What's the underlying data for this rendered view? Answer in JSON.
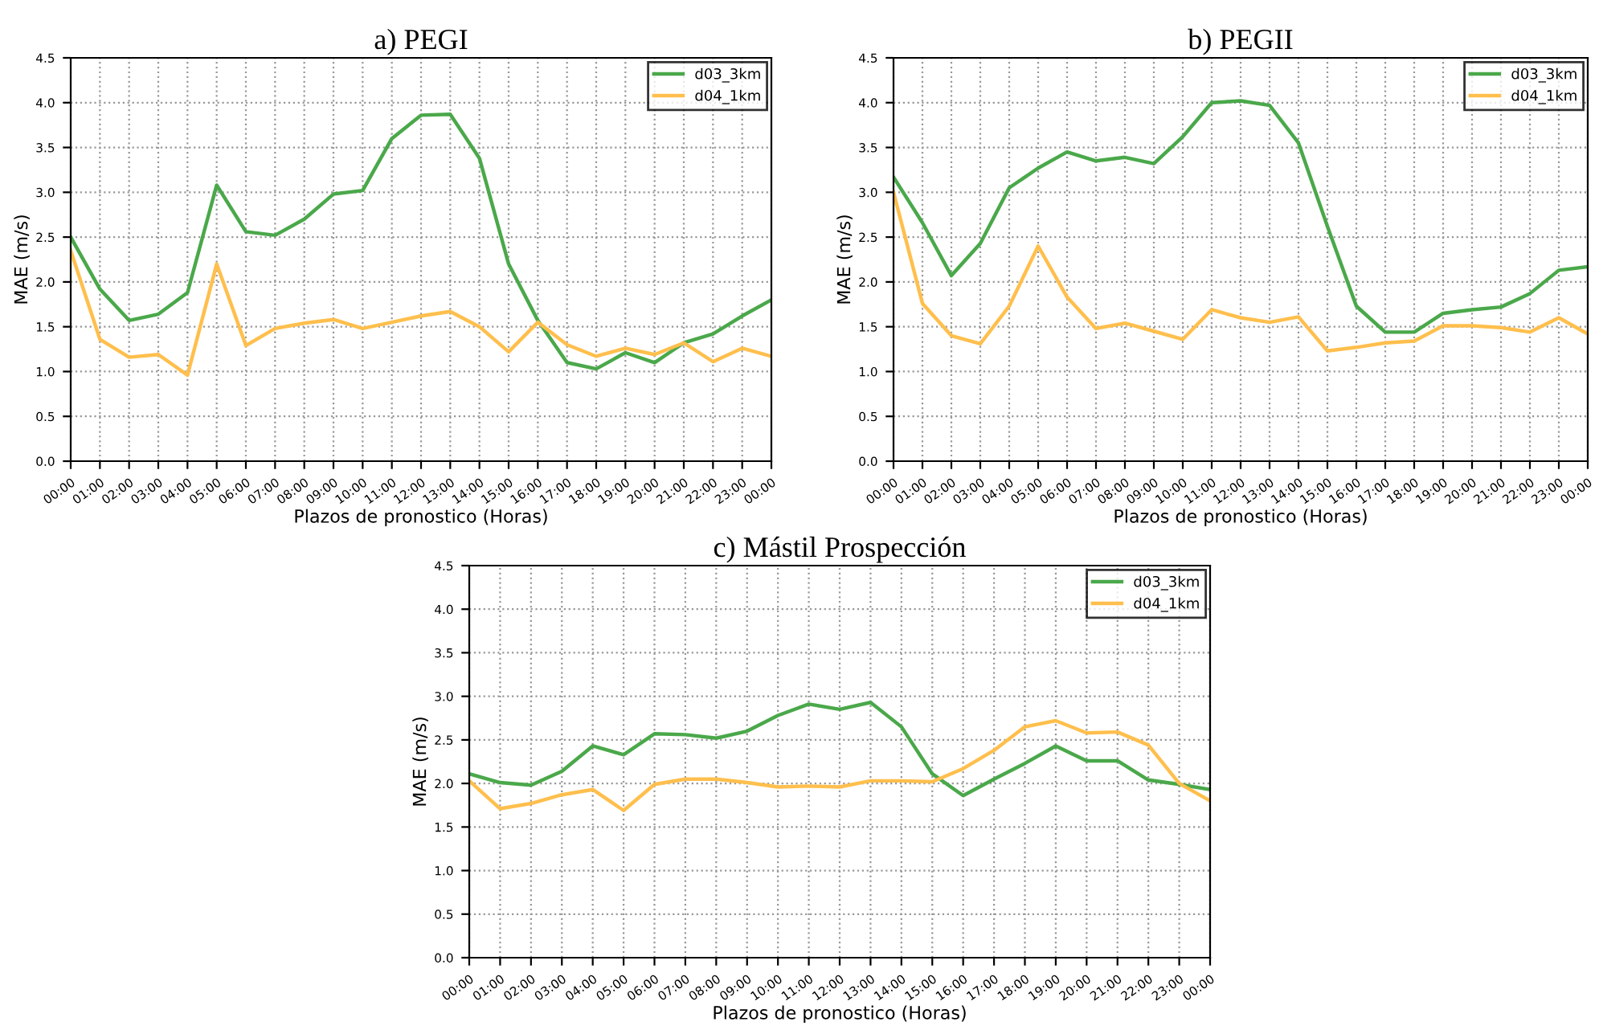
{
  "chart_data": [
    {
      "type": "line",
      "title": "a) PEGI",
      "xlabel": "Plazos de pronostico (Horas)",
      "ylabel": "MAE (m/s)",
      "categories": [
        "00:00",
        "01:00",
        "02:00",
        "03:00",
        "04:00",
        "05:00",
        "06:00",
        "07:00",
        "08:00",
        "09:00",
        "10:00",
        "11:00",
        "12:00",
        "13:00",
        "14:00",
        "15:00",
        "16:00",
        "17:00",
        "18:00",
        "19:00",
        "20:00",
        "21:00",
        "22:00",
        "23:00",
        "00:00"
      ],
      "series": [
        {
          "name": "d03_3km",
          "color": "#4aa84a",
          "values": [
            2.5,
            1.92,
            1.57,
            1.64,
            1.88,
            3.08,
            2.56,
            2.52,
            2.7,
            2.98,
            3.02,
            3.6,
            3.86,
            3.87,
            3.38,
            2.2,
            1.57,
            1.1,
            1.03,
            1.21,
            1.1,
            1.32,
            1.42,
            1.62,
            1.8
          ]
        },
        {
          "name": "d04_1km",
          "color": "#ffbf4d",
          "values": [
            2.35,
            1.36,
            1.16,
            1.19,
            0.96,
            2.2,
            1.29,
            1.48,
            1.54,
            1.58,
            1.48,
            1.55,
            1.62,
            1.67,
            1.5,
            1.22,
            1.55,
            1.3,
            1.17,
            1.26,
            1.19,
            1.32,
            1.11,
            1.26,
            1.17
          ]
        }
      ],
      "ylim": [
        0,
        4.5
      ],
      "yticks": [
        {
          "value": 0,
          "label": "0.0"
        },
        {
          "value": 0.5,
          "label": "0.5"
        },
        {
          "value": 1,
          "label": "1.0"
        },
        {
          "value": 1.5,
          "label": "1.5"
        },
        {
          "value": 2,
          "label": "2.0"
        },
        {
          "value": 2.5,
          "label": "2.5"
        },
        {
          "value": 3,
          "label": "3.0"
        },
        {
          "value": 3.5,
          "label": "3.5"
        },
        {
          "value": 4,
          "label": "4.0"
        },
        {
          "value": 4.5,
          "label": "4.5"
        }
      ],
      "grid": true,
      "legend": "top right",
      "line_style": "solid"
    },
    {
      "type": "line",
      "title": "b) PEGII",
      "xlabel": "Plazos de pronostico (Horas)",
      "ylabel": "MAE (m/s)",
      "categories": [
        "00:00",
        "01:00",
        "02:00",
        "03:00",
        "04:00",
        "05:00",
        "06:00",
        "07:00",
        "08:00",
        "09:00",
        "10:00",
        "11:00",
        "12:00",
        "13:00",
        "14:00",
        "15:00",
        "16:00",
        "17:00",
        "18:00",
        "19:00",
        "20:00",
        "21:00",
        "22:00",
        "23:00",
        "00:00"
      ],
      "series": [
        {
          "name": "d03_3km",
          "color": "#4aa84a",
          "values": [
            3.17,
            2.66,
            2.07,
            2.43,
            3.05,
            3.27,
            3.45,
            3.35,
            3.39,
            3.32,
            3.62,
            4.0,
            4.02,
            3.97,
            3.55,
            2.62,
            1.73,
            1.44,
            1.44,
            1.65,
            1.69,
            1.72,
            1.87,
            2.13,
            2.17
          ]
        },
        {
          "name": "d04_1km",
          "color": "#ffbf4d",
          "values": [
            3.0,
            1.76,
            1.4,
            1.31,
            1.73,
            2.4,
            1.83,
            1.48,
            1.54,
            1.45,
            1.36,
            1.69,
            1.6,
            1.55,
            1.61,
            1.23,
            1.27,
            1.32,
            1.34,
            1.51,
            1.51,
            1.49,
            1.44,
            1.6,
            1.42
          ]
        }
      ],
      "ylim": [
        0,
        4.5
      ],
      "yticks": [
        {
          "value": 0,
          "label": "0.0"
        },
        {
          "value": 0.5,
          "label": "0.5"
        },
        {
          "value": 1,
          "label": "1.0"
        },
        {
          "value": 1.5,
          "label": "1.5"
        },
        {
          "value": 2,
          "label": "2.0"
        },
        {
          "value": 2.5,
          "label": "2.5"
        },
        {
          "value": 3,
          "label": "3.0"
        },
        {
          "value": 3.5,
          "label": "3.5"
        },
        {
          "value": 4,
          "label": "4.0"
        },
        {
          "value": 4.5,
          "label": "4.5"
        }
      ],
      "grid": true,
      "legend": "top right",
      "line_style": "solid"
    },
    {
      "type": "line",
      "title": "c) Mástil Prospección",
      "xlabel": "Plazos de pronostico (Horas)",
      "ylabel": "MAE (m/s)",
      "categories": [
        "00:00",
        "01:00",
        "02:00",
        "03:00",
        "04:00",
        "05:00",
        "06:00",
        "07:00",
        "08:00",
        "09:00",
        "10:00",
        "11:00",
        "12:00",
        "13:00",
        "14:00",
        "15:00",
        "16:00",
        "17:00",
        "18:00",
        "19:00",
        "20:00",
        "21:00",
        "22:00",
        "23:00",
        "00:00"
      ],
      "series": [
        {
          "name": "d03_3km",
          "color": "#4aa84a",
          "values": [
            2.11,
            2.01,
            1.98,
            2.14,
            2.43,
            2.33,
            2.57,
            2.56,
            2.52,
            2.6,
            2.78,
            2.91,
            2.85,
            2.93,
            2.65,
            2.11,
            1.86,
            2.05,
            2.23,
            2.43,
            2.26,
            2.26,
            2.04,
            1.99,
            1.93
          ]
        },
        {
          "name": "d04_1km",
          "color": "#ffbf4d",
          "values": [
            2.03,
            1.71,
            1.77,
            1.87,
            1.93,
            1.69,
            1.99,
            2.05,
            2.05,
            2.01,
            1.96,
            1.97,
            1.96,
            2.03,
            2.03,
            2.02,
            2.17,
            2.38,
            2.65,
            2.72,
            2.58,
            2.59,
            2.44,
            2.0,
            1.8
          ]
        }
      ],
      "ylim": [
        0,
        4.5
      ],
      "yticks": [
        {
          "value": 0,
          "label": "0.0"
        },
        {
          "value": 0.5,
          "label": "0.5"
        },
        {
          "value": 1,
          "label": "1.0"
        },
        {
          "value": 1.5,
          "label": "1.5"
        },
        {
          "value": 2,
          "label": "2.0"
        },
        {
          "value": 2.5,
          "label": "2.5"
        },
        {
          "value": 3,
          "label": "3.0"
        },
        {
          "value": 3.5,
          "label": "3.5"
        },
        {
          "value": 4,
          "label": "4.0"
        },
        {
          "value": 4.5,
          "label": "4.5"
        }
      ],
      "grid": true,
      "legend": "top right",
      "line_style": "solid"
    }
  ]
}
